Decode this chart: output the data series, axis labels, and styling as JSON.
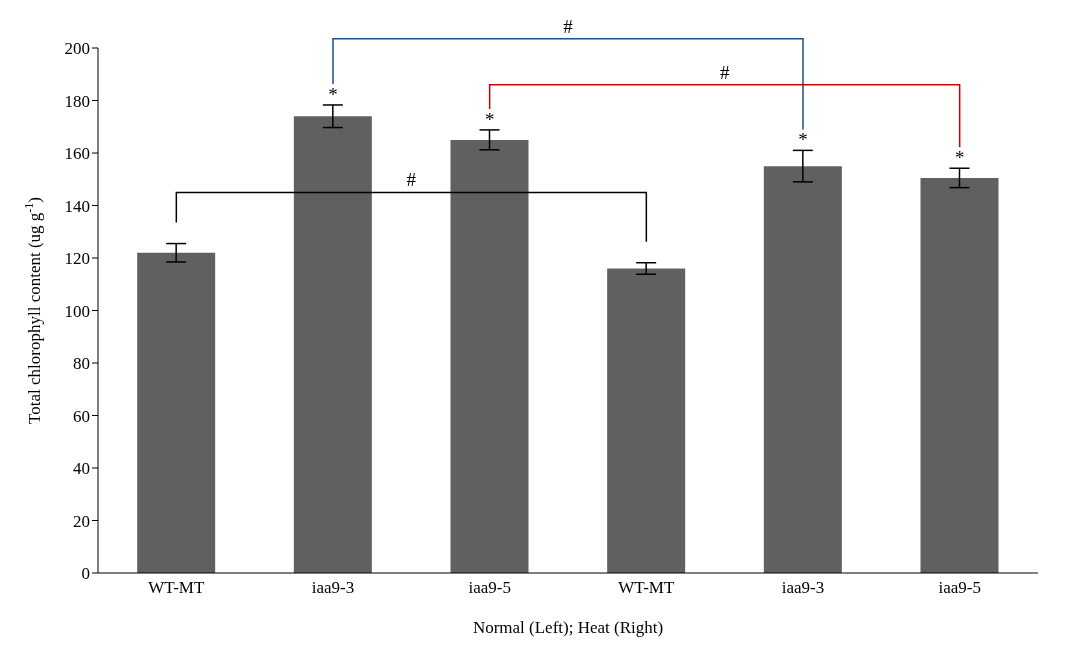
{
  "chart_data": {
    "type": "bar",
    "xlabel": "Normal (Left); Heat (Right)",
    "ylabel": "Total chlorophyll content (ug g$^{-1}$)",
    "categories": [
      "WT-MT",
      "iaa9-3",
      "iaa9-5",
      "WT-MT",
      "iaa9-3",
      "iaa9-5"
    ],
    "values": [
      122,
      174,
      165,
      116,
      155,
      150.5
    ],
    "errors": [
      3.5,
      4.3,
      3.8,
      2.2,
      6,
      3.7
    ],
    "color": "#606060",
    "ylim": [
      0,
      200
    ],
    "yticks": [
      0,
      20,
      40,
      60,
      80,
      100,
      120,
      140,
      160,
      180,
      200
    ],
    "grid": false,
    "legend": false,
    "annotations": [
      "#",
      "#",
      "#",
      "*",
      "*",
      "*",
      "*"
    ]
  }
}
